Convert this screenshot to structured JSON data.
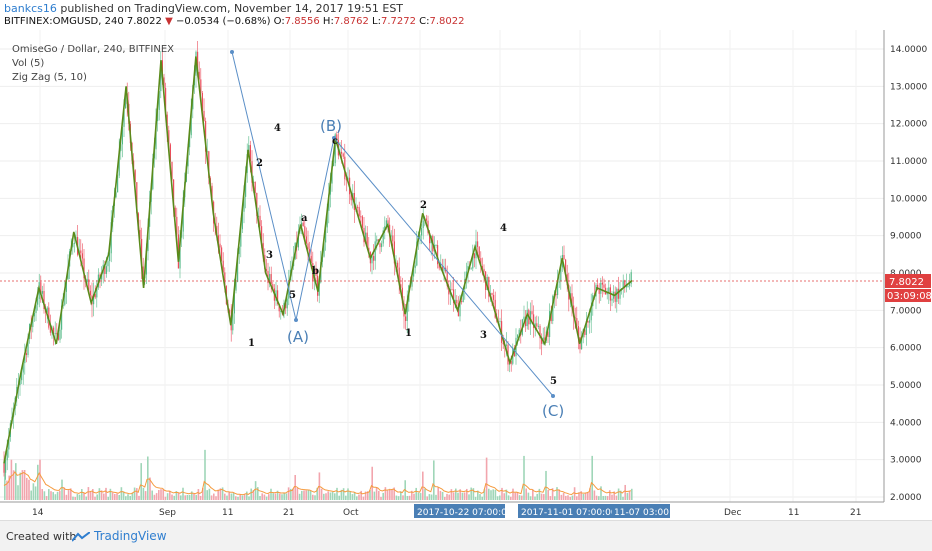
{
  "header": {
    "username": "bankcs16",
    "published": " published on TradingView.com, November 14, 2017 19:51 EST",
    "symbol": "BITFINEX:OMGUSD, 240",
    "last": "7.8022",
    "change_arrow": "▼",
    "change": "−0.0534 (−0.68%)",
    "open_label": "O:",
    "open": "7.8556",
    "high_label": "H:",
    "high": "7.8762",
    "low_label": "L:",
    "low": "7.7272",
    "close_label": "C:",
    "close": "7.8022"
  },
  "legend": {
    "title": "OmiseGo / Dollar, 240, BITFINEX",
    "vol": "Vol (5)",
    "zigzag": "Zig Zag (5, 10)"
  },
  "price_axis": {
    "ticks": [
      "14.0000",
      "13.0000",
      "12.0000",
      "11.0000",
      "10.0000",
      "9.0000",
      "8.0000",
      "7.0000",
      "6.0000",
      "5.0000",
      "4.0000",
      "3.0000",
      "2.0000"
    ],
    "current_price": "7.8022",
    "countdown": "03:09:08"
  },
  "time_axis": {
    "ticks": [
      "14",
      "Sep",
      "11",
      "21",
      "Oct",
      "Dec",
      "11",
      "21"
    ],
    "highlights": [
      "2017-10-22 07:00:00",
      "2017-11-01 07:00:00",
      "11-07 03:00:00"
    ]
  },
  "wave_labels": {
    "A": "(A)",
    "B": "(B)",
    "C": "(C)",
    "w1": "1",
    "w2": "2",
    "w3": "3",
    "w4": "4",
    "w5": "5",
    "wa": "a",
    "wb": "b",
    "wc": "c",
    "c1": "1",
    "c2": "2",
    "c3": "3",
    "c4": "4",
    "c5": "5"
  },
  "footer": {
    "created": "Created with",
    "brand": "TradingView"
  },
  "colors": {
    "zigzag": "#5a8a1a",
    "candle_up": "#53b987",
    "candle_down": "#eb4d5c",
    "vol_ma": "#f59b3f",
    "wave_line": "#5b8fc7",
    "price_line": "#e04040",
    "highlight": "#4a7fb5"
  },
  "chart_data": {
    "type": "line",
    "series": [
      {
        "x": [
          "Aug 05",
          "Aug 10",
          "Aug 14",
          "Aug 18",
          "Aug 22",
          "Aug 25",
          "Aug 29",
          "Sep 02",
          "Sep 05",
          "Sep 07",
          "Sep 09",
          "Sep 11",
          "Sep 13",
          "Sep 15",
          "Sep 17",
          "Sep 19",
          "Sep 21",
          "Sep 23",
          "Sep 25",
          "Sep 27",
          "Sep 29",
          "Oct 02",
          "Oct 05",
          "Oct 08",
          "Oct 11",
          "Oct 14",
          "Oct 17",
          "Oct 20",
          "Oct 23",
          "Oct 26",
          "Oct 29",
          "Nov 01",
          "Nov 04",
          "Nov 07",
          "Nov 10",
          "Nov 12",
          "Nov 14"
        ],
        "values": [
          2.9,
          5.4,
          7.6,
          6.1,
          9.1,
          7.2,
          8.5,
          13.0,
          7.6,
          13.7,
          8.3,
          13.8,
          9.6,
          6.6,
          11.3,
          8.0,
          6.9,
          9.3,
          7.5,
          11.6,
          10.0,
          8.4,
          9.3,
          6.9,
          9.6,
          8.2,
          7.0,
          8.7,
          7.2,
          5.6,
          6.9,
          6.1,
          8.4,
          6.1,
          7.6,
          7.4,
          7.8
        ]
      }
    ],
    "ylim": [
      1.8,
      14.3
    ],
    "y_ticks": [
      2,
      3,
      4,
      5,
      6,
      7,
      8,
      9,
      10,
      11,
      12,
      13,
      14
    ],
    "current_price": 7.8022,
    "grid": true
  }
}
